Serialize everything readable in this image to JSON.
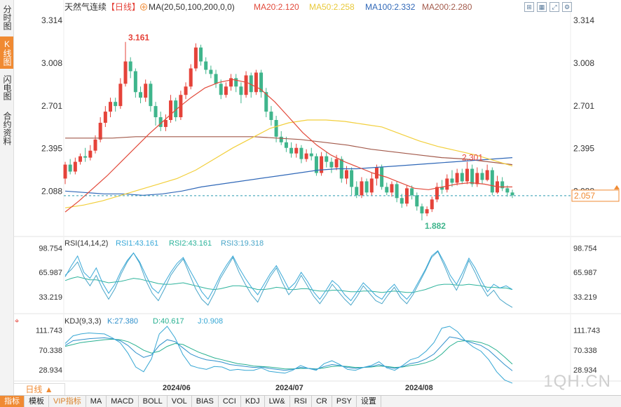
{
  "sidebar": {
    "tabs": [
      {
        "label": "分时图",
        "active": false
      },
      {
        "label": "K线图",
        "active": true
      },
      {
        "label": "闪电图",
        "active": false
      },
      {
        "label": "合约资料",
        "active": false
      }
    ]
  },
  "header": {
    "title": "天然气连续",
    "period": "【日线】",
    "ma_label": "MA(20,50,100,200,0,0)",
    "ma20": "MA20:2.120",
    "ma50": "MA50:2.258",
    "ma100": "MA100:2.332",
    "ma200": "MA200:2.280"
  },
  "tool_icons": [
    "fit-icon",
    "grid-icon",
    "expand-icon",
    "settings-icon"
  ],
  "colors": {
    "up": "#e5433a",
    "down": "#3fb58c",
    "ma20": "#e24a3b",
    "ma50": "#f2cf3c",
    "ma100": "#3068b8",
    "ma200": "#a35a4b",
    "rsi1": "#3aa9d8",
    "rsi2": "#2db39b",
    "rsi3": "#4aa6c9",
    "k": "#2f8fcb",
    "d": "#27b090",
    "j": "#37a7d4"
  },
  "price_axis": {
    "ticks": [
      "3.314",
      "3.008",
      "2.701",
      "2.395",
      "2.088"
    ],
    "current": "2.057"
  },
  "rsi": {
    "label": "RSI(14,14,2)",
    "rsi1": "RSI1:43.161",
    "rsi2": "RSI2:43.161",
    "rsi3": "RSI3:19.318",
    "ticks": [
      "98.754",
      "65.987",
      "33.219"
    ]
  },
  "kdj": {
    "label": "KDJ(9,3,3)",
    "k": "K:27.380",
    "d": "D:40.617",
    "j": "J:0.908",
    "ticks": [
      "111.743",
      "70.338",
      "28.934"
    ]
  },
  "date_labels": [
    "2024/06",
    "2024/07",
    "2024/08"
  ],
  "period_selector": "日线 ▲",
  "bottom_tabs": [
    "指标",
    "模板",
    "VIP指标",
    "MA",
    "MACD",
    "BOLL",
    "VOL",
    "BIAS",
    "CCI",
    "KDJ",
    "LW&",
    "RSI",
    "CR",
    "PSY",
    "设置"
  ],
  "watermark": "1QH.CN",
  "chart_data": {
    "type": "candlestick",
    "title": "天然气连续【日线】",
    "ylim": [
      1.85,
      3.35
    ],
    "high_annotation": "3.161",
    "low_annotation": "1.882",
    "peak_annotation": "2.301",
    "last_price": 2.057,
    "candles": [
      [
        2.18,
        2.28,
        2.3,
        2.14
      ],
      [
        2.28,
        2.23,
        2.32,
        2.21
      ],
      [
        2.23,
        2.3,
        2.33,
        2.21
      ],
      [
        2.3,
        2.34,
        2.36,
        2.28
      ],
      [
        2.34,
        2.33,
        2.4,
        2.3
      ],
      [
        2.33,
        2.38,
        2.42,
        2.31
      ],
      [
        2.38,
        2.46,
        2.49,
        2.36
      ],
      [
        2.46,
        2.58,
        2.62,
        2.44
      ],
      [
        2.58,
        2.66,
        2.7,
        2.55
      ],
      [
        2.66,
        2.73,
        2.76,
        2.62
      ],
      [
        2.73,
        2.7,
        2.76,
        2.66
      ],
      [
        2.7,
        2.86,
        2.9,
        2.68
      ],
      [
        2.86,
        3.02,
        3.16,
        2.84
      ],
      [
        3.02,
        2.95,
        3.05,
        2.9
      ],
      [
        2.95,
        2.8,
        2.97,
        2.76
      ],
      [
        2.8,
        2.76,
        2.84,
        2.72
      ],
      [
        2.76,
        2.86,
        2.89,
        2.73
      ],
      [
        2.86,
        2.7,
        2.88,
        2.66
      ],
      [
        2.7,
        2.62,
        2.73,
        2.56
      ],
      [
        2.62,
        2.55,
        2.66,
        2.52
      ],
      [
        2.55,
        2.6,
        2.64,
        2.52
      ],
      [
        2.6,
        2.74,
        2.78,
        2.58
      ],
      [
        2.74,
        2.62,
        2.76,
        2.59
      ],
      [
        2.62,
        2.78,
        2.81,
        2.6
      ],
      [
        2.78,
        2.84,
        2.87,
        2.75
      ],
      [
        2.84,
        2.97,
        3.0,
        2.82
      ],
      [
        2.97,
        3.12,
        3.15,
        2.95
      ],
      [
        3.12,
        3.02,
        3.14,
        2.99
      ],
      [
        3.02,
        2.96,
        3.05,
        2.93
      ],
      [
        2.96,
        2.93,
        2.99,
        2.9
      ],
      [
        2.93,
        2.86,
        2.96,
        2.83
      ],
      [
        2.86,
        2.78,
        2.89,
        2.75
      ],
      [
        2.78,
        2.84,
        2.87,
        2.76
      ],
      [
        2.84,
        2.9,
        2.93,
        2.81
      ],
      [
        2.9,
        2.84,
        2.93,
        2.8
      ],
      [
        2.84,
        2.78,
        2.87,
        2.72
      ],
      [
        2.78,
        2.92,
        2.95,
        2.76
      ],
      [
        2.92,
        2.8,
        2.94,
        2.76
      ],
      [
        2.8,
        2.94,
        2.96,
        2.78
      ],
      [
        2.94,
        2.8,
        2.96,
        2.76
      ],
      [
        2.8,
        2.66,
        2.83,
        2.62
      ],
      [
        2.66,
        2.6,
        2.7,
        2.56
      ],
      [
        2.6,
        2.48,
        2.63,
        2.44
      ],
      [
        2.48,
        2.44,
        2.52,
        2.42
      ],
      [
        2.44,
        2.4,
        2.48,
        2.37
      ],
      [
        2.4,
        2.36,
        2.44,
        2.33
      ],
      [
        2.36,
        2.4,
        2.43,
        2.33
      ],
      [
        2.4,
        2.32,
        2.42,
        2.29
      ],
      [
        2.32,
        2.36,
        2.39,
        2.3
      ],
      [
        2.36,
        2.34,
        2.4,
        2.31
      ],
      [
        2.34,
        2.22,
        2.36,
        2.2
      ],
      [
        2.22,
        2.34,
        2.37,
        2.2
      ],
      [
        2.34,
        2.3,
        2.37,
        2.26
      ],
      [
        2.3,
        2.26,
        2.33,
        2.22
      ],
      [
        2.26,
        2.32,
        2.35,
        2.24
      ],
      [
        2.32,
        2.18,
        2.34,
        2.15
      ],
      [
        2.18,
        2.24,
        2.27,
        2.14
      ],
      [
        2.24,
        2.12,
        2.26,
        2.06
      ],
      [
        2.12,
        2.06,
        2.16,
        2.04
      ],
      [
        2.06,
        2.16,
        2.19,
        2.04
      ],
      [
        2.16,
        2.08,
        2.18,
        2.06
      ],
      [
        2.08,
        2.18,
        2.22,
        2.06
      ],
      [
        2.18,
        2.26,
        2.28,
        2.13
      ],
      [
        2.26,
        2.12,
        2.28,
        2.1
      ],
      [
        2.12,
        2.08,
        2.15,
        2.06
      ],
      [
        2.08,
        2.14,
        2.16,
        2.05
      ],
      [
        2.14,
        2.04,
        2.16,
        2.01
      ],
      [
        2.04,
        2.0,
        2.07,
        1.97
      ],
      [
        2.0,
        2.11,
        2.13,
        1.98
      ],
      [
        2.11,
        2.06,
        2.13,
        2.03
      ],
      [
        2.06,
        1.98,
        2.08,
        1.95
      ],
      [
        1.98,
        1.93,
        2.0,
        1.88
      ],
      [
        1.93,
        1.96,
        1.98,
        1.91
      ],
      [
        1.96,
        2.03,
        2.05,
        1.94
      ],
      [
        2.03,
        2.12,
        2.15,
        2.01
      ],
      [
        2.12,
        2.1,
        2.17,
        2.07
      ],
      [
        2.1,
        2.18,
        2.21,
        2.08
      ],
      [
        2.18,
        2.15,
        2.24,
        2.12
      ],
      [
        2.15,
        2.22,
        2.25,
        2.13
      ],
      [
        2.22,
        2.16,
        2.25,
        2.14
      ],
      [
        2.16,
        2.25,
        2.3,
        2.14
      ],
      [
        2.25,
        2.14,
        2.28,
        2.12
      ],
      [
        2.14,
        2.22,
        2.26,
        2.12
      ],
      [
        2.22,
        2.17,
        2.25,
        2.14
      ],
      [
        2.17,
        2.24,
        2.28,
        2.16
      ],
      [
        2.24,
        2.08,
        2.26,
        2.06
      ],
      [
        2.08,
        2.16,
        2.2,
        2.07
      ],
      [
        2.16,
        2.11,
        2.19,
        2.09
      ],
      [
        2.11,
        2.08,
        2.13,
        2.05
      ],
      [
        2.08,
        2.06,
        2.1,
        2.04
      ]
    ],
    "ma20": [
      1.94,
      2.02,
      2.11,
      2.2,
      2.3,
      2.4,
      2.5,
      2.59,
      2.68,
      2.76,
      2.83,
      2.87,
      2.89,
      2.87,
      2.82,
      2.73,
      2.62,
      2.51,
      2.42,
      2.35,
      2.3,
      2.26,
      2.22,
      2.19,
      2.15,
      2.11,
      2.1,
      2.12,
      2.14,
      2.15,
      2.14,
      2.12,
      2.12
    ],
    "ma50": [
      1.97,
      1.99,
      2.02,
      2.06,
      2.1,
      2.14,
      2.18,
      2.24,
      2.32,
      2.4,
      2.47,
      2.54,
      2.58,
      2.6,
      2.6,
      2.59,
      2.57,
      2.55,
      2.5,
      2.45,
      2.41,
      2.38,
      2.35,
      2.31,
      2.27
    ],
    "ma100": [
      2.09,
      2.08,
      2.07,
      2.07,
      2.06,
      2.07,
      2.09,
      2.12,
      2.14,
      2.16,
      2.18,
      2.2,
      2.22,
      2.24,
      2.25,
      2.25,
      2.26,
      2.27,
      2.28,
      2.29,
      2.3,
      2.31,
      2.32,
      2.33
    ],
    "ma200": [
      2.47,
      2.47,
      2.47,
      2.48,
      2.48,
      2.48,
      2.48,
      2.48,
      2.48,
      2.47,
      2.46,
      2.44,
      2.42,
      2.39,
      2.37,
      2.35,
      2.33,
      2.32,
      2.3,
      2.28
    ],
    "rsi_ylim": [
      20,
      100
    ],
    "rsi1": [
      60,
      75,
      88,
      66,
      58,
      72,
      52,
      38,
      50,
      68,
      82,
      92,
      80,
      62,
      45,
      38,
      52,
      66,
      78,
      86,
      70,
      55,
      40,
      30,
      45,
      62,
      76,
      88,
      72,
      58,
      46,
      36,
      50,
      64,
      75,
      60,
      44,
      52,
      66,
      54,
      40,
      30,
      42,
      55,
      48,
      36,
      28,
      40,
      52,
      44,
      35,
      30,
      42,
      50,
      38,
      30,
      40,
      55,
      70,
      88,
      95,
      80,
      62,
      50,
      66,
      85,
      72,
      55,
      40,
      50,
      45,
      48,
      43
    ],
    "rsi2": [
      55,
      58,
      60,
      58,
      56,
      56,
      54,
      52,
      53,
      54,
      56,
      58,
      57,
      55,
      53,
      51,
      50,
      50,
      51,
      52,
      50,
      48,
      46,
      44,
      43,
      44,
      46,
      48,
      48,
      47,
      45,
      43,
      43,
      44,
      46,
      45,
      43,
      43,
      44,
      44,
      42,
      41,
      41,
      42,
      42,
      41,
      40,
      40,
      41,
      41,
      40,
      39,
      40,
      41,
      40,
      39,
      39,
      41,
      43,
      46,
      49,
      50,
      50,
      49,
      49,
      50,
      49,
      48,
      46,
      46,
      45,
      45,
      43
    ],
    "rsi3": [
      62,
      70,
      80,
      60,
      48,
      62,
      44,
      30,
      44,
      64,
      80,
      92,
      78,
      55,
      38,
      28,
      44,
      62,
      74,
      84,
      64,
      44,
      30,
      22,
      38,
      58,
      72,
      86,
      66,
      50,
      36,
      26,
      44,
      60,
      72,
      52,
      36,
      46,
      62,
      48,
      34,
      24,
      36,
      50,
      40,
      30,
      22,
      34,
      48,
      38,
      28,
      24,
      36,
      46,
      32,
      24,
      36,
      52,
      68,
      86,
      94,
      76,
      56,
      42,
      60,
      82,
      66,
      48,
      34,
      42,
      30,
      24,
      19
    ],
    "kdj_ylim": [
      10,
      120
    ],
    "k": [
      80,
      90,
      92,
      94,
      95,
      96,
      94,
      90,
      80,
      65,
      55,
      60,
      80,
      92,
      88,
      75,
      62,
      55,
      50,
      48,
      45,
      40,
      38,
      36,
      34,
      35,
      32,
      30,
      28,
      30,
      34,
      32,
      30,
      36,
      40,
      38,
      34,
      32,
      34,
      36,
      40,
      35,
      32,
      36,
      42,
      45,
      52,
      62,
      80,
      98,
      95,
      90,
      85,
      80,
      70,
      55,
      40,
      27
    ],
    "d": [
      78,
      82,
      86,
      88,
      90,
      92,
      93,
      92,
      88,
      80,
      70,
      64,
      68,
      78,
      84,
      82,
      74,
      66,
      60,
      54,
      50,
      46,
      42,
      40,
      37,
      36,
      35,
      33,
      31,
      31,
      32,
      32,
      31,
      33,
      36,
      37,
      36,
      34,
      34,
      35,
      37,
      36,
      34,
      35,
      38,
      40,
      44,
      50,
      62,
      78,
      88,
      90,
      89,
      86,
      80,
      70,
      56,
      41
    ],
    "j": [
      84,
      100,
      104,
      106,
      105,
      104,
      96,
      86,
      64,
      35,
      25,
      52,
      104,
      120,
      96,
      61,
      38,
      33,
      30,
      36,
      35,
      28,
      30,
      28,
      28,
      33,
      26,
      24,
      22,
      28,
      38,
      32,
      28,
      42,
      48,
      40,
      30,
      28,
      34,
      38,
      46,
      33,
      28,
      38,
      50,
      55,
      68,
      86,
      116,
      120,
      109,
      90,
      77,
      68,
      50,
      25,
      8,
      1
    ]
  }
}
